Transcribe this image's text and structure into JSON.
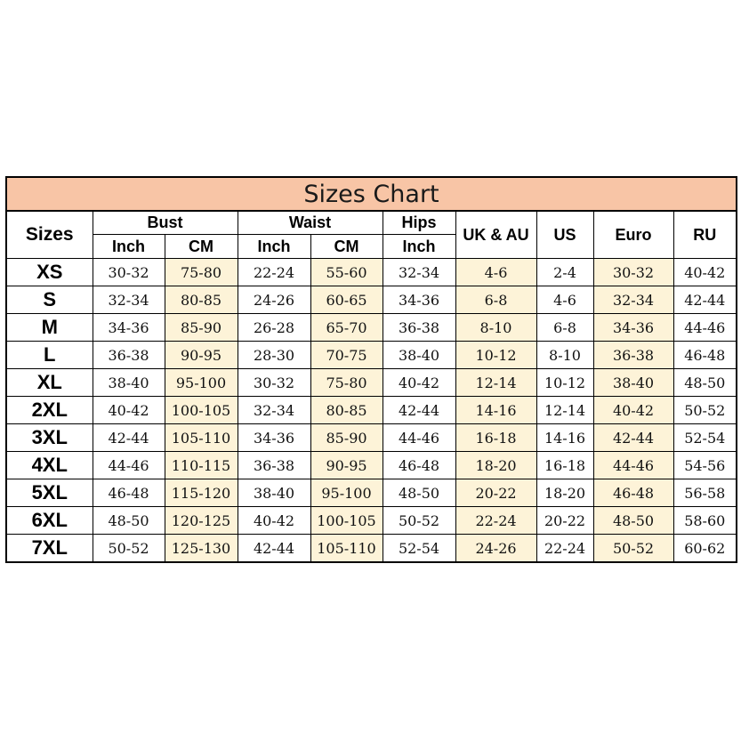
{
  "title": "Sizes Chart",
  "headers": {
    "sizes": "Sizes",
    "bust": "Bust",
    "waist": "Waist",
    "hips": "Hips",
    "uk_au": "UK & AU",
    "us": "US",
    "euro": "Euro",
    "ru": "RU",
    "inch": "Inch",
    "cm": "CM"
  },
  "colors": {
    "title_bg": "#f8c5a6",
    "highlight_bg": "#fdf3d8"
  },
  "rows": [
    {
      "size": "XS",
      "bust_inch": "30-32",
      "bust_cm": "75-80",
      "waist_inch": "22-24",
      "waist_cm": "55-60",
      "hips_inch": "32-34",
      "uk_au": "4-6",
      "us": "2-4",
      "euro": "30-32",
      "ru": "40-42"
    },
    {
      "size": "S",
      "bust_inch": "32-34",
      "bust_cm": "80-85",
      "waist_inch": "24-26",
      "waist_cm": "60-65",
      "hips_inch": "34-36",
      "uk_au": "6-8",
      "us": "4-6",
      "euro": "32-34",
      "ru": "42-44"
    },
    {
      "size": "M",
      "bust_inch": "34-36",
      "bust_cm": "85-90",
      "waist_inch": "26-28",
      "waist_cm": "65-70",
      "hips_inch": "36-38",
      "uk_au": "8-10",
      "us": "6-8",
      "euro": "34-36",
      "ru": "44-46"
    },
    {
      "size": "L",
      "bust_inch": "36-38",
      "bust_cm": "90-95",
      "waist_inch": "28-30",
      "waist_cm": "70-75",
      "hips_inch": "38-40",
      "uk_au": "10-12",
      "us": "8-10",
      "euro": "36-38",
      "ru": "46-48"
    },
    {
      "size": "XL",
      "bust_inch": "38-40",
      "bust_cm": "95-100",
      "waist_inch": "30-32",
      "waist_cm": "75-80",
      "hips_inch": "40-42",
      "uk_au": "12-14",
      "us": "10-12",
      "euro": "38-40",
      "ru": "48-50"
    },
    {
      "size": "2XL",
      "bust_inch": "40-42",
      "bust_cm": "100-105",
      "waist_inch": "32-34",
      "waist_cm": "80-85",
      "hips_inch": "42-44",
      "uk_au": "14-16",
      "us": "12-14",
      "euro": "40-42",
      "ru": "50-52"
    },
    {
      "size": "3XL",
      "bust_inch": "42-44",
      "bust_cm": "105-110",
      "waist_inch": "34-36",
      "waist_cm": "85-90",
      "hips_inch": "44-46",
      "uk_au": "16-18",
      "us": "14-16",
      "euro": "42-44",
      "ru": "52-54"
    },
    {
      "size": "4XL",
      "bust_inch": "44-46",
      "bust_cm": "110-115",
      "waist_inch": "36-38",
      "waist_cm": "90-95",
      "hips_inch": "46-48",
      "uk_au": "18-20",
      "us": "16-18",
      "euro": "44-46",
      "ru": "54-56"
    },
    {
      "size": "5XL",
      "bust_inch": "46-48",
      "bust_cm": "115-120",
      "waist_inch": "38-40",
      "waist_cm": "95-100",
      "hips_inch": "48-50",
      "uk_au": "20-22",
      "us": "18-20",
      "euro": "46-48",
      "ru": "56-58"
    },
    {
      "size": "6XL",
      "bust_inch": "48-50",
      "bust_cm": "120-125",
      "waist_inch": "40-42",
      "waist_cm": "100-105",
      "hips_inch": "50-52",
      "uk_au": "22-24",
      "us": "20-22",
      "euro": "48-50",
      "ru": "58-60"
    },
    {
      "size": "7XL",
      "bust_inch": "50-52",
      "bust_cm": "125-130",
      "waist_inch": "42-44",
      "waist_cm": "105-110",
      "hips_inch": "52-54",
      "uk_au": "24-26",
      "us": "22-24",
      "euro": "50-52",
      "ru": "60-62"
    }
  ]
}
